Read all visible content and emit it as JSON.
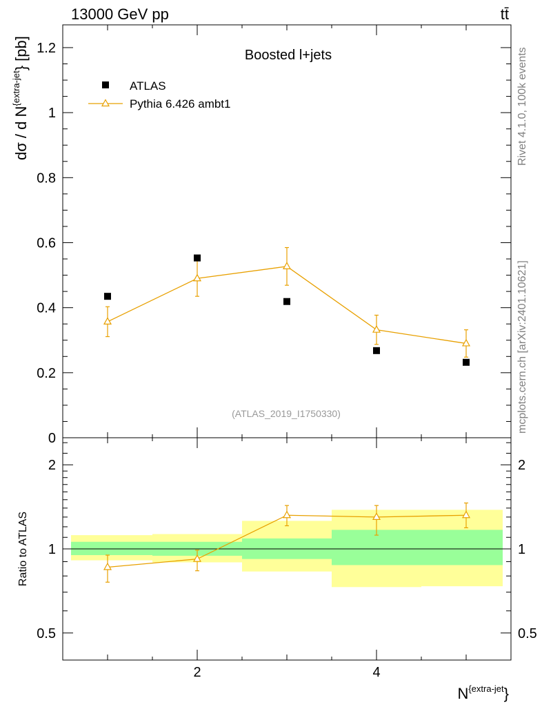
{
  "header": {
    "energy": "13000 GeV pp",
    "process": "tt̄"
  },
  "side_text": {
    "rivet": "Rivet 4.1.0,  100k events",
    "mcplots": "mcplots.cern.ch [arXiv:2401.10621]"
  },
  "analysis_label": "(ATLAS_2019_I1750330)",
  "colors": {
    "atlas": "#000000",
    "pythia": "#e8a000",
    "band_inner": "#99ff99",
    "band_outer": "#ffff99"
  },
  "chart_data": {
    "type": "scatter",
    "title": "Boosted l+jets",
    "xlabel_main": "N",
    "xlabel_sup": "{extra-jet",
    "xlabel_close": "}",
    "ylabel_main_prefix": "dσ / d N",
    "ylabel_main_sup": "{extra-jet",
    "ylabel_main_suffix": "} [pb]",
    "ylabel_ratio": "Ratio to ATLAS",
    "xlim": [
      0.5,
      5.5
    ],
    "ylim": [
      0,
      1.27
    ],
    "ratio_ylim": [
      0.4,
      2.5
    ],
    "x_ticks": [
      {
        "v": 2,
        "label": "2"
      },
      {
        "v": 4,
        "label": "4"
      }
    ],
    "y_ticks": [
      {
        "v": 0,
        "label": "0"
      },
      {
        "v": 0.2,
        "label": "0.2"
      },
      {
        "v": 0.4,
        "label": "0.4"
      },
      {
        "v": 0.6,
        "label": "0.6"
      },
      {
        "v": 0.8,
        "label": "0.8"
      },
      {
        "v": 1.0,
        "label": "1"
      },
      {
        "v": 1.2,
        "label": "1.2"
      }
    ],
    "ratio_ticks": [
      {
        "v": 0.5,
        "label": "0.5"
      },
      {
        "v": 1,
        "label": "1"
      },
      {
        "v": 2,
        "label": "2"
      }
    ],
    "series": [
      {
        "name": "ATLAS",
        "x": [
          1,
          2,
          3,
          4,
          5
        ],
        "values": [
          0.435,
          0.553,
          0.419,
          0.268,
          0.232
        ]
      },
      {
        "name": "Pythia 6.426 ambt1",
        "x": [
          1,
          2,
          3,
          4,
          5
        ],
        "values": [
          0.357,
          0.49,
          0.527,
          0.332,
          0.29
        ],
        "err": [
          0.046,
          0.055,
          0.058,
          0.045,
          0.042
        ]
      }
    ],
    "ratio_series": {
      "x": [
        1,
        2,
        3,
        4,
        5
      ],
      "values": [
        0.86,
        0.92,
        1.32,
        1.3,
        1.32
      ],
      "err_lo": [
        0.1,
        0.085,
        0.11,
        0.18,
        0.13
      ],
      "err_hi": [
        0.09,
        0.07,
        0.11,
        0.13,
        0.14
      ]
    },
    "bands": [
      {
        "x0": 0.5,
        "x1": 1.5,
        "inner": [
          0.95,
          1.06
        ],
        "outer": [
          0.91,
          1.12
        ]
      },
      {
        "x0": 1.5,
        "x1": 2.5,
        "inner": [
          0.945,
          1.06
        ],
        "outer": [
          0.895,
          1.13
        ]
      },
      {
        "x0": 2.5,
        "x1": 3.5,
        "inner": [
          0.92,
          1.09
        ],
        "outer": [
          0.83,
          1.26
        ]
      },
      {
        "x0": 3.5,
        "x1": 4.5,
        "inner": [
          0.875,
          1.17
        ],
        "outer": [
          0.73,
          1.38
        ]
      },
      {
        "x0": 4.5,
        "x1": 5.5,
        "inner": [
          0.875,
          1.17
        ],
        "outer": [
          0.735,
          1.38
        ]
      }
    ]
  }
}
